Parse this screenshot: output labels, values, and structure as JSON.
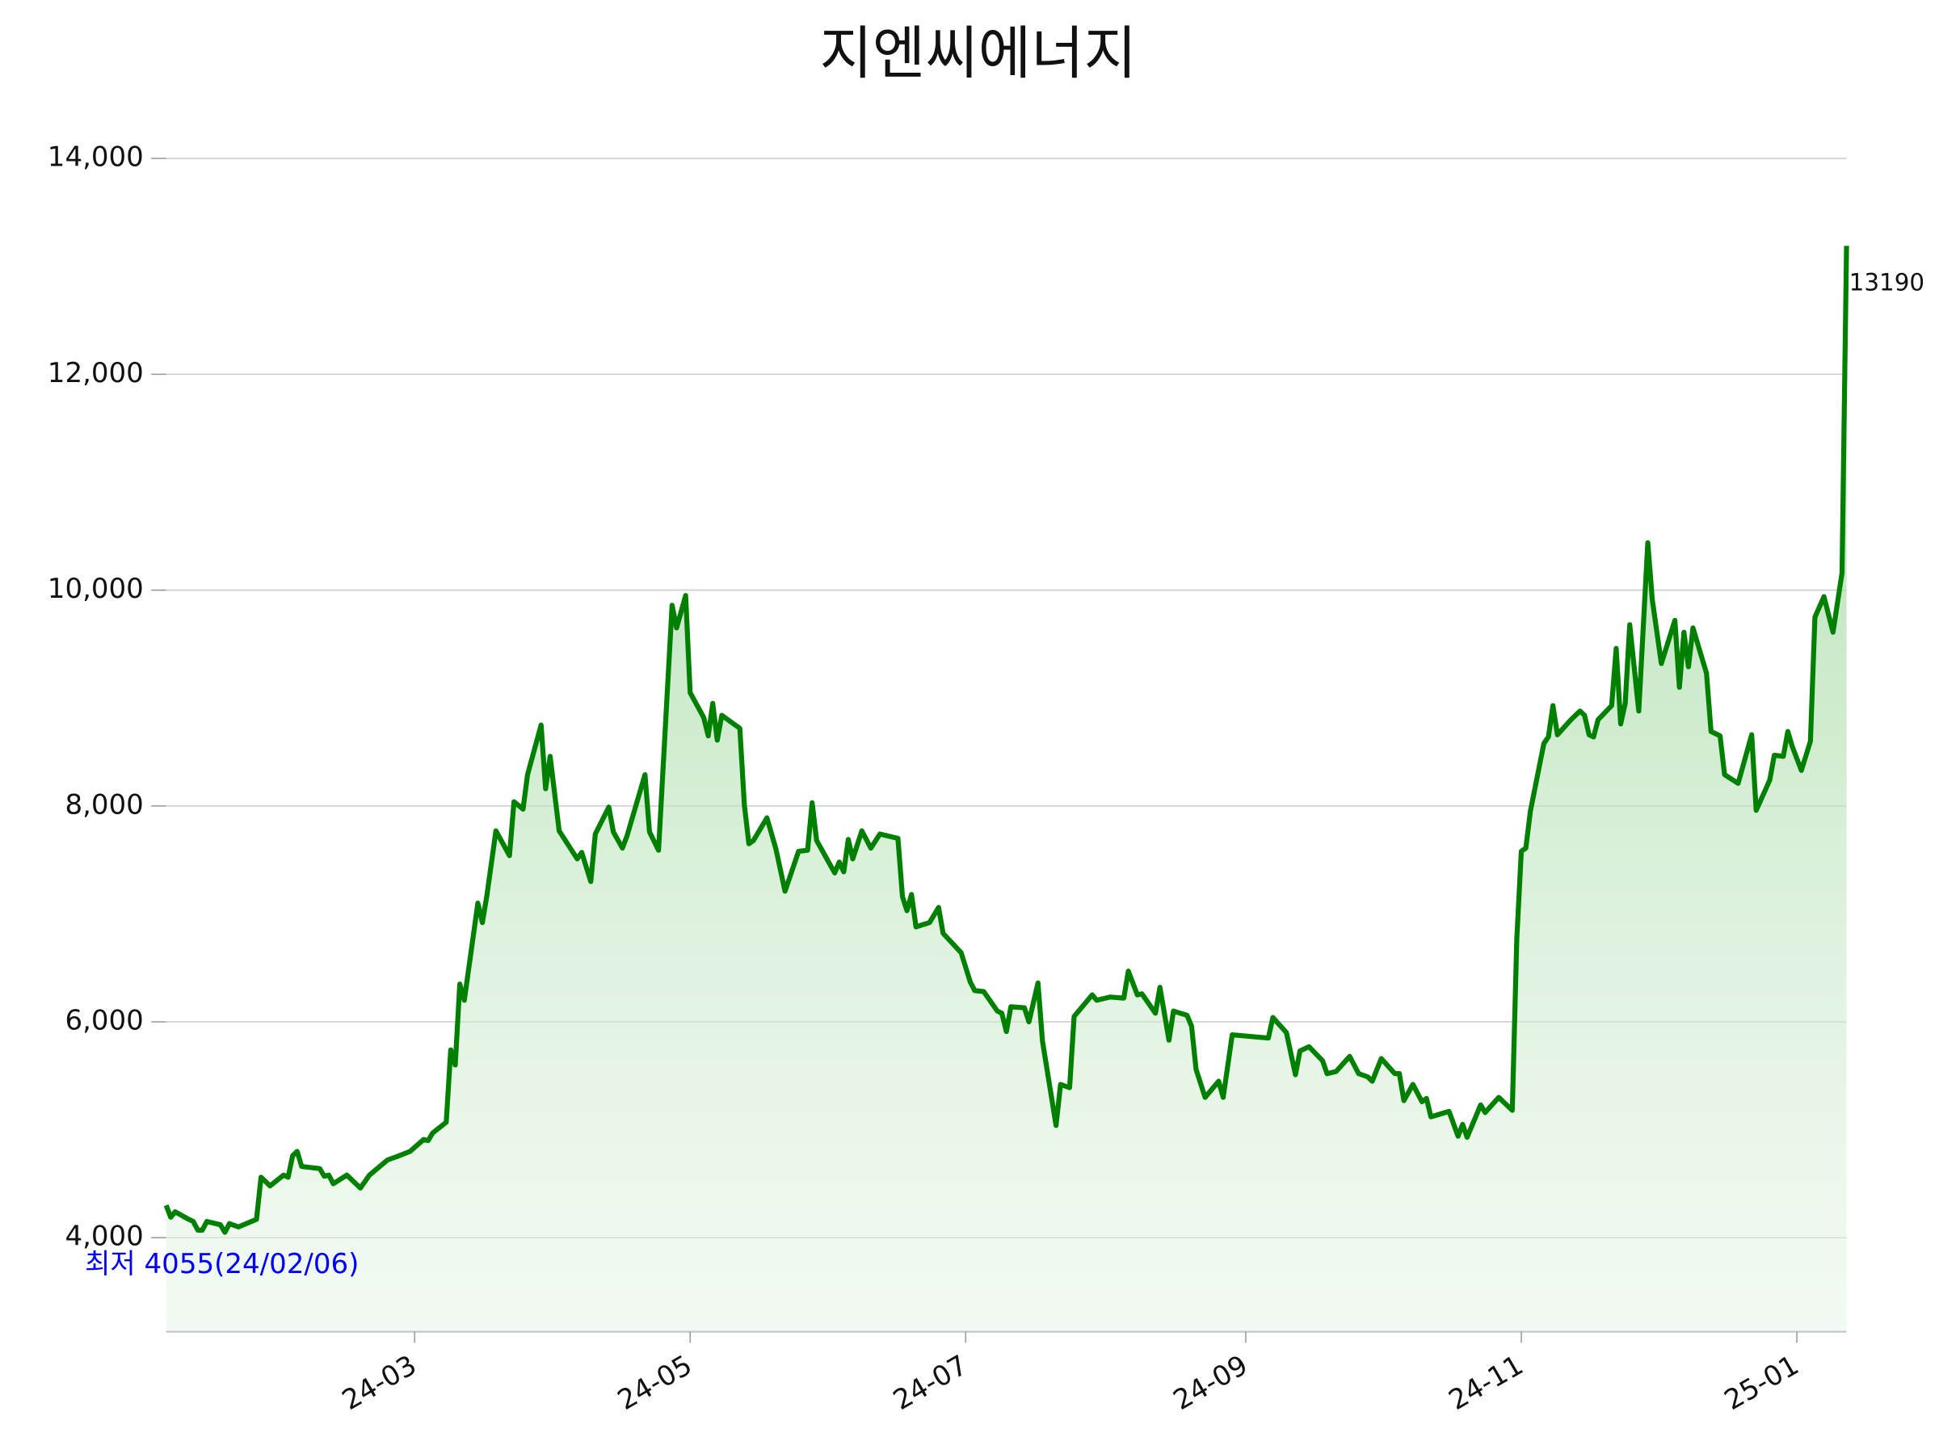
{
  "chart_data": {
    "type": "line",
    "title": "지엔씨에너지",
    "color": "#008000",
    "area": true,
    "grid": true,
    "x": [
      "2024-01-06",
      "2024-01-07",
      "2024-01-08",
      "2024-01-11",
      "2024-01-12",
      "2024-01-13",
      "2024-01-14",
      "2024-01-15",
      "2024-01-18",
      "2024-01-19",
      "2024-01-20",
      "2024-01-22",
      "2024-01-26",
      "2024-01-27",
      "2024-01-29",
      "2024-02-01",
      "2024-02-02",
      "2024-02-03",
      "2024-02-04",
      "2024-02-05",
      "2024-02-09",
      "2024-02-10",
      "2024-02-11",
      "2024-02-12",
      "2024-02-15",
      "2024-02-18",
      "2024-02-20",
      "2024-02-22",
      "2024-02-24",
      "2024-02-26",
      "2024-02-29",
      "2024-03-03",
      "2024-03-04",
      "2024-03-05",
      "2024-03-08",
      "2024-03-09",
      "2024-03-10",
      "2024-03-11",
      "2024-03-12",
      "2024-03-15",
      "2024-03-16",
      "2024-03-17",
      "2024-03-19",
      "2024-03-22",
      "2024-03-23",
      "2024-03-25",
      "2024-03-26",
      "2024-03-29",
      "2024-03-30",
      "2024-03-31",
      "2024-04-02",
      "2024-04-06",
      "2024-04-07",
      "2024-04-09",
      "2024-04-10",
      "2024-04-13",
      "2024-04-14",
      "2024-04-16",
      "2024-04-17",
      "2024-04-21",
      "2024-04-22",
      "2024-04-24",
      "2024-04-27",
      "2024-04-28",
      "2024-04-30",
      "2024-05-01",
      "2024-05-04",
      "2024-05-05",
      "2024-05-06",
      "2024-05-07",
      "2024-05-08",
      "2024-05-12",
      "2024-05-13",
      "2024-05-14",
      "2024-05-15",
      "2024-05-18",
      "2024-05-20",
      "2024-05-22",
      "2024-05-25",
      "2024-05-27",
      "2024-05-28",
      "2024-05-29",
      "2024-06-02",
      "2024-06-03",
      "2024-06-04",
      "2024-06-05",
      "2024-06-06",
      "2024-06-08",
      "2024-06-10",
      "2024-06-12",
      "2024-06-16",
      "2024-06-17",
      "2024-06-18",
      "2024-06-19",
      "2024-06-20",
      "2024-06-23",
      "2024-06-25",
      "2024-06-26",
      "2024-06-30",
      "2024-07-02",
      "2024-07-03",
      "2024-07-05",
      "2024-07-08",
      "2024-07-09",
      "2024-07-10",
      "2024-07-11",
      "2024-07-14",
      "2024-07-15",
      "2024-07-17",
      "2024-07-18",
      "2024-07-21",
      "2024-07-22",
      "2024-07-24",
      "2024-07-25",
      "2024-07-29",
      "2024-07-30",
      "2024-08-02",
      "2024-08-05",
      "2024-08-06",
      "2024-08-08",
      "2024-08-09",
      "2024-08-12",
      "2024-08-13",
      "2024-08-15",
      "2024-08-16",
      "2024-08-19",
      "2024-08-20",
      "2024-08-21",
      "2024-08-23",
      "2024-08-26",
      "2024-08-27",
      "2024-08-29",
      "2024-09-06",
      "2024-09-07",
      "2024-09-10",
      "2024-09-12",
      "2024-09-13",
      "2024-09-15",
      "2024-09-18",
      "2024-09-19",
      "2024-09-21",
      "2024-09-24",
      "2024-09-26",
      "2024-09-28",
      "2024-09-29",
      "2024-10-01",
      "2024-10-04",
      "2024-10-05",
      "2024-10-06",
      "2024-10-08",
      "2024-10-10",
      "2024-10-11",
      "2024-10-12",
      "2024-10-16",
      "2024-10-18",
      "2024-10-19",
      "2024-10-20",
      "2024-10-23",
      "2024-10-24",
      "2024-10-27",
      "2024-10-30",
      "2024-10-31",
      "2024-11-01",
      "2024-11-02",
      "2024-11-03",
      "2024-11-06",
      "2024-11-07",
      "2024-11-08",
      "2024-11-09",
      "2024-11-12",
      "2024-11-14",
      "2024-11-15",
      "2024-11-16",
      "2024-11-17",
      "2024-11-18",
      "2024-11-21",
      "2024-11-22",
      "2024-11-23",
      "2024-11-24",
      "2024-11-25",
      "2024-11-27",
      "2024-11-29",
      "2024-11-30",
      "2024-12-02",
      "2024-12-05",
      "2024-12-06",
      "2024-12-07",
      "2024-12-08",
      "2024-12-09",
      "2024-12-12",
      "2024-12-13",
      "2024-12-15",
      "2024-12-16",
      "2024-12-19",
      "2024-12-22",
      "2024-12-23",
      "2024-12-26",
      "2024-12-27",
      "2024-12-29",
      "2024-12-30",
      "2024-12-31",
      "2025-01-02",
      "2025-01-04",
      "2025-01-05",
      "2025-01-07",
      "2025-01-09",
      "2025-01-11",
      "2025-01-12"
    ],
    "values": [
      4300,
      4190,
      4240,
      4170,
      4150,
      4070,
      4070,
      4150,
      4120,
      4050,
      4130,
      4100,
      4170,
      4560,
      4480,
      4580,
      4560,
      4760,
      4800,
      4660,
      4640,
      4570,
      4580,
      4500,
      4580,
      4460,
      4580,
      4650,
      4720,
      4750,
      4800,
      4910,
      4900,
      4970,
      5070,
      5740,
      5600,
      6350,
      6200,
      7100,
      6920,
      7170,
      7770,
      7540,
      8040,
      7970,
      8290,
      8750,
      8160,
      8460,
      7770,
      7510,
      7570,
      7300,
      7740,
      7990,
      7760,
      7610,
      7720,
      8290,
      7760,
      7590,
      9860,
      9650,
      9950,
      9050,
      8820,
      8650,
      8950,
      8610,
      8840,
      8720,
      8010,
      7650,
      7680,
      7890,
      7600,
      7210,
      7580,
      7590,
      8030,
      7680,
      7380,
      7480,
      7390,
      7690,
      7510,
      7770,
      7610,
      7740,
      7700,
      7160,
      7030,
      7180,
      6880,
      6920,
      7060,
      6820,
      6640,
      6370,
      6290,
      6280,
      6100,
      6080,
      5910,
      6140,
      6130,
      6000,
      6360,
      5820,
      5040,
      5420,
      5390,
      6050,
      6250,
      6200,
      6230,
      6220,
      6470,
      6250,
      6260,
      6080,
      6320,
      5830,
      6100,
      6060,
      5960,
      5560,
      5300,
      5450,
      5300,
      5880,
      5850,
      6040,
      5900,
      5510,
      5730,
      5770,
      5640,
      5520,
      5540,
      5680,
      5520,
      5490,
      5450,
      5660,
      5520,
      5520,
      5270,
      5420,
      5260,
      5290,
      5120,
      5170,
      4940,
      5050,
      4930,
      5230,
      5160,
      5300,
      5180,
      6770,
      7580,
      7610,
      7950,
      8580,
      8640,
      8930,
      8660,
      8800,
      8880,
      8840,
      8660,
      8640,
      8800,
      8930,
      9460,
      8760,
      8950,
      9680,
      8880,
      10440,
      9910,
      9320,
      9720,
      9100,
      9610,
      9290,
      9650,
      9230,
      8690,
      8650,
      8290,
      8210,
      8660,
      7960,
      8240,
      8470,
      8460,
      8690,
      8550,
      8330,
      8600,
      9750,
      9940,
      9610,
      10160,
      13190
    ],
    "xlim": [
      "2024-01-06",
      "2025-01-12"
    ],
    "xticks": [
      {
        "value": "2024-03-01",
        "label": "24-03"
      },
      {
        "value": "2024-05-01",
        "label": "24-05"
      },
      {
        "value": "2024-07-01",
        "label": "24-07"
      },
      {
        "value": "2024-09-01",
        "label": "24-09"
      },
      {
        "value": "2024-11-01",
        "label": "24-11"
      },
      {
        "value": "2025-01-01",
        "label": "25-01"
      }
    ],
    "ylim": [
      3130,
      14600
    ],
    "yticks": [
      {
        "value": 4000,
        "label": "4,000"
      },
      {
        "value": 6000,
        "label": "6,000"
      },
      {
        "value": 8000,
        "label": "8,000"
      },
      {
        "value": 10000,
        "label": "10,000"
      },
      {
        "value": 12000,
        "label": "12,000"
      },
      {
        "value": 14000,
        "label": "14,000"
      }
    ],
    "annotations": [
      {
        "text": "최저 4055(24/02/06)",
        "color": "#0000ff"
      }
    ]
  }
}
